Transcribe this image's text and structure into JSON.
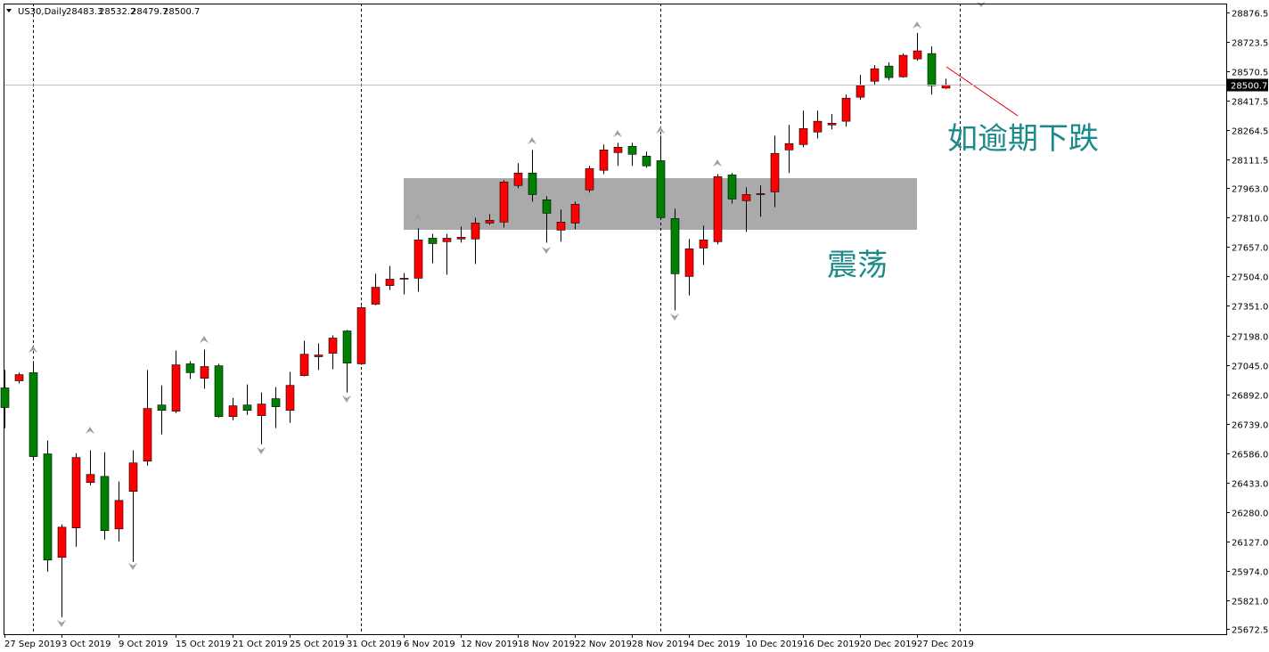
{
  "chart_data": {
    "type": "candlestick",
    "title": "US30,Daily",
    "categories": [
      "27 Sep 2019",
      null,
      null,
      null,
      "3 Oct 2019",
      null,
      null,
      null,
      "9 Oct 2019",
      null,
      null,
      null,
      "15 Oct 2019",
      null,
      null,
      null,
      "21 Oct 2019",
      null,
      null,
      null,
      "25 Oct 2019",
      null,
      null,
      null,
      "31 Oct 2019",
      null,
      null,
      null,
      "6 Nov 2019",
      null,
      null,
      null,
      "12 Nov 2019",
      null,
      null,
      null,
      "18 Nov 2019",
      null,
      null,
      null,
      "22 Nov 2019",
      null,
      null,
      null,
      "28 Nov 2019",
      null,
      null,
      null,
      "4 Dec 2019",
      null,
      null,
      null,
      "10 Dec 2019",
      null,
      null,
      null,
      "16 Dec 2019",
      null,
      null,
      null,
      "20 Dec 2019",
      null,
      null,
      null,
      "27 Dec 2019",
      null,
      null
    ],
    "open": [
      26925,
      26962,
      27004,
      26582,
      26044,
      26197,
      26433,
      26465,
      26192,
      26387,
      26544,
      26836,
      26804,
      27050,
      26975,
      27040,
      26776,
      26836,
      26781,
      26869,
      26808,
      26989,
      27087,
      27105,
      27221,
      27050,
      27360,
      27457,
      27490,
      27495,
      27703,
      27685,
      27699,
      27699,
      27782,
      27787,
      27977,
      28042,
      27903,
      27745,
      27782,
      27954,
      28056,
      28148,
      28181,
      28130,
      28106,
      27805,
      27504,
      27652,
      27685,
      28032,
      27898,
      27930,
      27944,
      28162,
      28190,
      28255,
      28292,
      28311,
      28436,
      28519,
      28598,
      28542,
      28635,
      28663,
      28483.3
    ],
    "high": [
      27018,
      27004,
      27064,
      26651,
      26215,
      26586,
      26600,
      26591,
      26438,
      26600,
      27018,
      26938,
      27119,
      27064,
      27124,
      27050,
      26873,
      26943,
      26901,
      26929,
      27008,
      27170,
      27156,
      27198,
      27226,
      27351,
      27518,
      27559,
      27522,
      27754,
      27726,
      27726,
      27763,
      27810,
      27828,
      28005,
      28093,
      28162,
      27921,
      27852,
      27893,
      28079,
      28190,
      28199,
      28199,
      28153,
      28236,
      27856,
      27699,
      27768,
      28037,
      28042,
      27967,
      27977,
      28236,
      28292,
      28366,
      28366,
      28348,
      28450,
      28552,
      28603,
      28617,
      28663,
      28770,
      28700,
      28532.2
    ],
    "low": [
      26716,
      26948,
      26554,
      25970,
      25733,
      26099,
      26419,
      26136,
      26127,
      26020,
      26521,
      26683,
      26794,
      26971,
      26920,
      26771,
      26757,
      26785,
      26632,
      26716,
      26743,
      26985,
      27018,
      27022,
      26901,
      27045,
      27355,
      27434,
      27411,
      27425,
      27573,
      27513,
      27680,
      27569,
      27773,
      27759,
      27963,
      27893,
      27680,
      27685,
      27750,
      27940,
      28037,
      28079,
      28079,
      28069,
      27800,
      27328,
      27406,
      27564,
      27671,
      27884,
      27736,
      27815,
      27865,
      28042,
      28176,
      28222,
      28269,
      28283,
      28422,
      28501,
      28524,
      28538,
      28626,
      28450,
      28479.7
    ],
    "close": [
      26823,
      26994,
      26568,
      26030,
      26201,
      26563,
      26475,
      26183,
      26340,
      26535,
      26818,
      26808,
      27045,
      27004,
      27036,
      26776,
      26832,
      26808,
      26841,
      26827,
      26938,
      27100,
      27096,
      27184,
      27054,
      27342,
      27448,
      27490,
      27495,
      27694,
      27675,
      27703,
      27708,
      27782,
      27796,
      27995,
      28042,
      27930,
      27833,
      27787,
      27879,
      28065,
      28162,
      28176,
      28139,
      28079,
      27810,
      27518,
      27648,
      27694,
      28023,
      27907,
      27930,
      27935,
      28144,
      28195,
      28273,
      28311,
      28301,
      28431,
      28496,
      28584,
      28538,
      28654,
      28677,
      28496,
      28500.7
    ],
    "up_color": "#ff0000",
    "down_color": "#008000",
    "ylim": [
      25644.7,
      28922.8
    ],
    "yticks": [
      28876.5,
      28723.5,
      28570.5,
      28417.5,
      28264.5,
      28111.5,
      {
        "value": 27963,
        "label": "27963.0"
      },
      {
        "value": 27810,
        "label": "27810.0"
      },
      {
        "value": 27657,
        "label": "27657.0"
      },
      {
        "value": 27504,
        "label": "27504.0"
      },
      {
        "value": 27351,
        "label": "27351.0"
      },
      {
        "value": 27198,
        "label": "27198.0"
      },
      {
        "value": 27045,
        "label": "27045.0"
      },
      {
        "value": 26892,
        "label": "26892.0"
      },
      {
        "value": 26739,
        "label": "26739.0"
      },
      {
        "value": 26586,
        "label": "26586.0"
      },
      {
        "value": 26433,
        "label": "26433.0"
      },
      {
        "value": 26280,
        "label": "26280.0"
      },
      {
        "value": 26127,
        "label": "26127.0"
      },
      {
        "value": 25974,
        "label": "25974.0"
      },
      {
        "value": 25821,
        "label": "25821.0"
      },
      25672.5
    ],
    "annotations": [
      "如逾期下跌",
      "震荡"
    ]
  }
}
